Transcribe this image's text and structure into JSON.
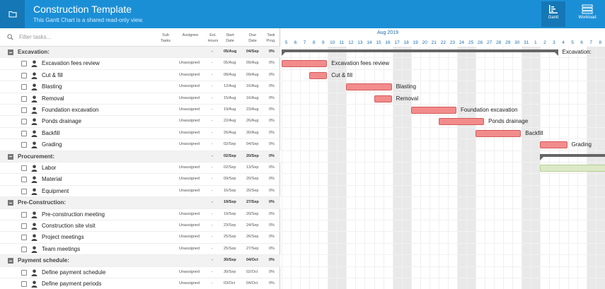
{
  "header": {
    "title": "Construction Template",
    "subtitle": "This Gantt Chart is a shared read-only view.",
    "views": [
      {
        "label": "Gantt",
        "icon": "gantt-icon",
        "active": true
      },
      {
        "label": "Workload",
        "icon": "workload-icon",
        "active": false
      }
    ]
  },
  "grid": {
    "filter_placeholder": "Filter tasks...",
    "columns": {
      "sub_tasks": "Sub Tasks",
      "assignee": "Assignee",
      "est_hours": "Est. Hours",
      "start_date": "Start Date",
      "due_date": "Due Date",
      "task_prog": "Task Prog."
    },
    "rows": [
      {
        "type": "group",
        "name": "Excavation:",
        "est": "-",
        "start": "05/Aug",
        "due": "04/Sep",
        "prog": "0%"
      },
      {
        "type": "task",
        "name": "Excavation fees review",
        "assignee": "Unassigned",
        "est": "-",
        "start": "05/Aug",
        "due": "09/Aug",
        "prog": "0%"
      },
      {
        "type": "task",
        "name": "Cut & fill",
        "assignee": "Unassigned",
        "est": "-",
        "start": "08/Aug",
        "due": "09/Aug",
        "prog": "0%"
      },
      {
        "type": "task",
        "name": "Blasting",
        "assignee": "Unassigned",
        "est": "-",
        "start": "12/Aug",
        "due": "16/Aug",
        "prog": "0%"
      },
      {
        "type": "task",
        "name": "Removal",
        "assignee": "Unassigned",
        "est": "-",
        "start": "15/Aug",
        "due": "16/Aug",
        "prog": "0%"
      },
      {
        "type": "task",
        "name": "Foundation excavation",
        "assignee": "Unassigned",
        "est": "-",
        "start": "19/Aug",
        "due": "23/Aug",
        "prog": "0%"
      },
      {
        "type": "task",
        "name": "Ponds drainage",
        "assignee": "Unassigned",
        "est": "-",
        "start": "22/Aug",
        "due": "26/Aug",
        "prog": "0%"
      },
      {
        "type": "task",
        "name": "Backfill",
        "assignee": "Unassigned",
        "est": "-",
        "start": "26/Aug",
        "due": "30/Aug",
        "prog": "0%"
      },
      {
        "type": "task",
        "name": "Grading",
        "assignee": "Unassigned",
        "est": "-",
        "start": "02/Sep",
        "due": "04/Sep",
        "prog": "0%"
      },
      {
        "type": "group",
        "name": "Procurement:",
        "est": "-",
        "start": "02/Sep",
        "due": "20/Sep",
        "prog": "0%"
      },
      {
        "type": "task",
        "name": "Labor",
        "assignee": "Unassigned",
        "est": "-",
        "start": "02/Sep",
        "due": "13/Sep",
        "prog": "0%"
      },
      {
        "type": "task",
        "name": "Material",
        "assignee": "Unassigned",
        "est": "-",
        "start": "09/Sep",
        "due": "20/Sep",
        "prog": "0%"
      },
      {
        "type": "task",
        "name": "Equipment",
        "assignee": "Unassigned",
        "est": "-",
        "start": "16/Sep",
        "due": "20/Sep",
        "prog": "0%"
      },
      {
        "type": "group",
        "name": "Pre-Construction:",
        "est": "-",
        "start": "19/Sep",
        "due": "27/Sep",
        "prog": "0%"
      },
      {
        "type": "task",
        "name": "Pre-construction meeting",
        "assignee": "Unassigned",
        "est": "-",
        "start": "19/Sep",
        "due": "20/Sep",
        "prog": "0%"
      },
      {
        "type": "task",
        "name": "Construction site visit",
        "assignee": "Unassigned",
        "est": "-",
        "start": "23/Sep",
        "due": "24/Sep",
        "prog": "0%"
      },
      {
        "type": "task",
        "name": "Project meetings",
        "assignee": "Unassigned",
        "est": "-",
        "start": "25/Sep",
        "due": "26/Sep",
        "prog": "0%"
      },
      {
        "type": "task",
        "name": "Team meetings",
        "assignee": "Unassigned",
        "est": "-",
        "start": "25/Sep",
        "due": "27/Sep",
        "prog": "0%"
      },
      {
        "type": "group",
        "name": "Payment schedule:",
        "est": "-",
        "start": "30/Sep",
        "due": "04/Oct",
        "prog": "0%"
      },
      {
        "type": "task",
        "name": "Define payment schedule",
        "assignee": "Unassigned",
        "est": "-",
        "start": "30/Sep",
        "due": "02/Oct",
        "prog": "0%"
      },
      {
        "type": "task",
        "name": "Define payment periods",
        "assignee": "Unassigned",
        "est": "-",
        "start": "03/Oct",
        "due": "04/Oct",
        "prog": "0%"
      }
    ]
  },
  "timeline": {
    "month_label": "Aug 2019",
    "days": [
      "5",
      "6",
      "7",
      "8",
      "9",
      "10",
      "11",
      "12",
      "13",
      "14",
      "15",
      "16",
      "17",
      "18",
      "19",
      "20",
      "21",
      "22",
      "23",
      "24",
      "25",
      "26",
      "27",
      "28",
      "29",
      "30",
      "31",
      "1",
      "2",
      "3",
      "4",
      "5",
      "6",
      "7",
      "8"
    ],
    "weekend_indices": [
      5,
      6,
      12,
      13,
      19,
      20,
      26,
      27,
      33,
      34
    ],
    "bars": [
      {
        "row": 0,
        "kind": "summary",
        "start": 0,
        "end": 30,
        "label": "Excavation:"
      },
      {
        "row": 1,
        "kind": "task",
        "start": 0,
        "end": 5,
        "label": "Excavation fees review"
      },
      {
        "row": 2,
        "kind": "task",
        "start": 3,
        "end": 5,
        "label": "Cut & fill"
      },
      {
        "row": 3,
        "kind": "task",
        "start": 7,
        "end": 12,
        "label": "Blasting"
      },
      {
        "row": 4,
        "kind": "task",
        "start": 10,
        "end": 12,
        "label": "Removal"
      },
      {
        "row": 5,
        "kind": "task",
        "start": 14,
        "end": 19,
        "label": "Foundation excavation"
      },
      {
        "row": 6,
        "kind": "task",
        "start": 17,
        "end": 22,
        "label": "Ponds drainage"
      },
      {
        "row": 7,
        "kind": "task",
        "start": 21,
        "end": 26,
        "label": "Backfill"
      },
      {
        "row": 8,
        "kind": "task",
        "start": 28,
        "end": 31,
        "label": "Grading"
      },
      {
        "row": 9,
        "kind": "summary",
        "start": 28,
        "end": 40,
        "label": ""
      },
      {
        "row": 10,
        "kind": "green",
        "start": 28,
        "end": 40,
        "label": ""
      }
    ]
  }
}
